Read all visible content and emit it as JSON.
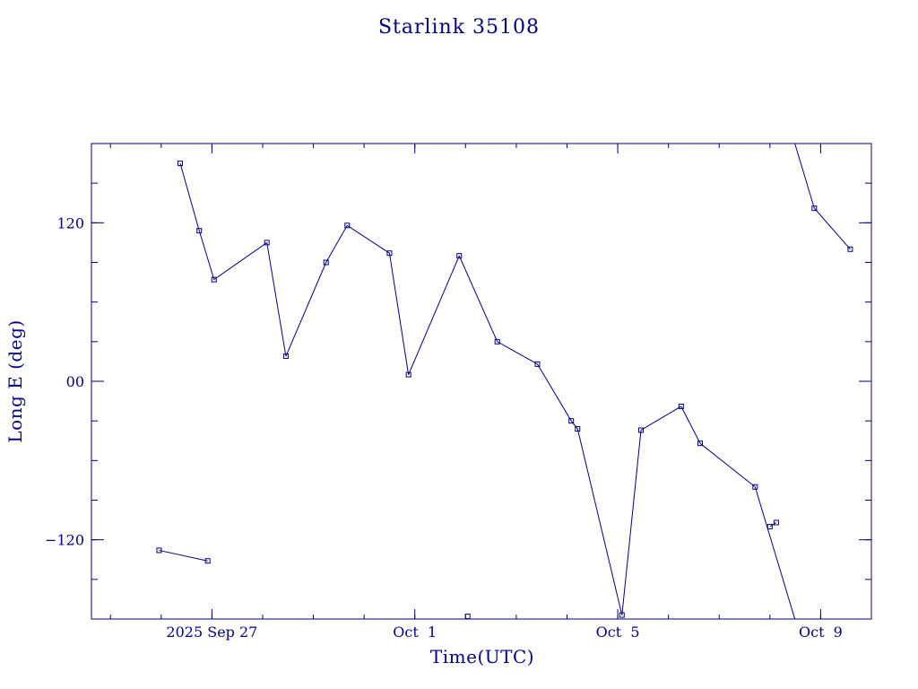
{
  "colors": {
    "ink": "#00007f",
    "background": "#ffffff"
  },
  "chart_data": {
    "type": "line",
    "title": "Starlink 35108",
    "xlabel": "Time(UTC)",
    "ylabel": "Long E (deg)",
    "x_tick_labels": [
      "2025 Sep 27",
      "Oct  1",
      "Oct  5",
      "Oct  9"
    ],
    "y_tick_labels": [
      "−120",
      "00",
      "120"
    ],
    "y_ticks": [
      -120,
      0,
      120
    ],
    "xlim": [
      "2025-09-24T15:00",
      "2025-10-10T00:00"
    ],
    "ylim": [
      -180,
      180
    ],
    "grid": false,
    "marker": "square",
    "series": [
      {
        "values_x": [
          "2025-09-26T09:00",
          "2025-09-26T18:00",
          "2025-09-27T01:00",
          "2025-09-28T02:00",
          "2025-09-28T11:00",
          "2025-09-29T06:00",
          "2025-09-29T16:00",
          "2025-09-30T12:00",
          "2025-09-30T21:00",
          "2025-10-01T21:00",
          "2025-10-02T15:00",
          "2025-10-03T10:00",
          "2025-10-04T02:00",
          "2025-10-04T05:00",
          "2025-10-05T02:00",
          "2025-10-05T11:00",
          "2025-10-06T06:00",
          "2025-10-06T15:00",
          "2025-10-07T17:00",
          "2025-10-08T21:00",
          "2025-10-09T14:00"
        ],
        "values_y": [
          165,
          114,
          77,
          105,
          19,
          90,
          118,
          97,
          5,
          95,
          30,
          13,
          -30,
          -36,
          -177,
          -37,
          -19,
          -47,
          -80,
          131,
          100
        ]
      },
      {
        "values_x": [
          "2025-09-25T23:00",
          "2025-09-26T22:00"
        ],
        "values_y": [
          -128,
          -136
        ]
      },
      {
        "values_x": [
          "2025-10-02T01:00"
        ],
        "values_y": [
          -178
        ]
      },
      {
        "values_x": [
          "2025-10-08T00:00",
          "2025-10-08T03:00"
        ],
        "values_y": [
          -110,
          -107
        ]
      }
    ]
  }
}
